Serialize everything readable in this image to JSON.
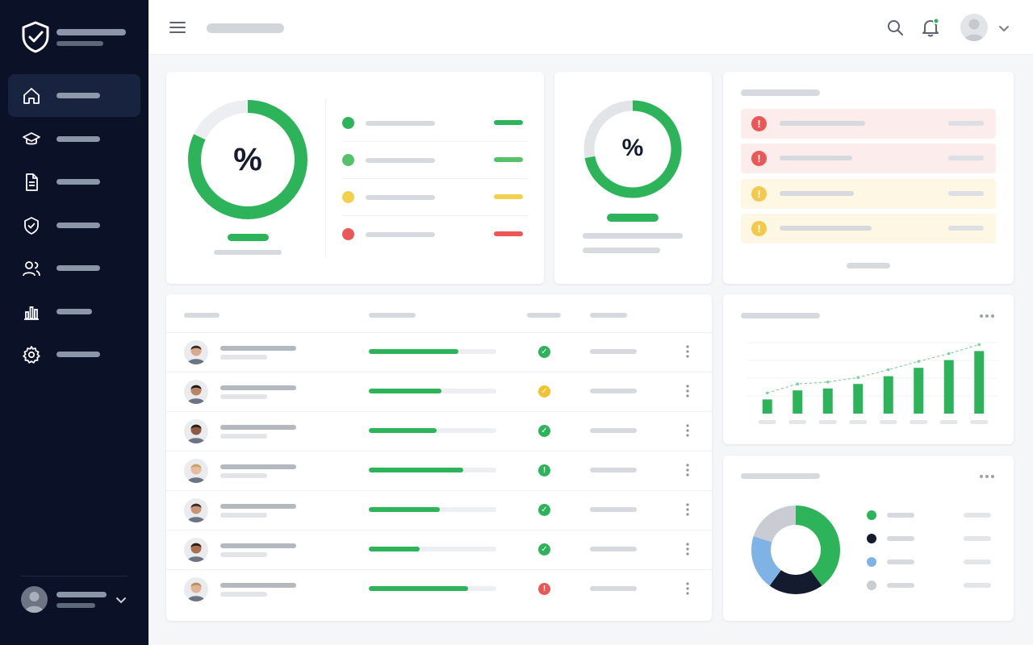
{
  "colors": {
    "sidebar_bg": "#0b1228",
    "sidebar_active": "#18233f",
    "accent_green": "#2db45a",
    "warning_yellow": "#f2c94c",
    "danger_red": "#eb5757",
    "navy": "#151b2e",
    "blue": "#7fb2e5",
    "gray": "#c9ccd2"
  },
  "sidebar": {
    "logo_icon": "shield-check-icon",
    "items": [
      {
        "icon": "home-icon",
        "active": true
      },
      {
        "icon": "graduation-cap-icon",
        "active": false
      },
      {
        "icon": "document-icon",
        "active": false
      },
      {
        "icon": "shield-icon",
        "active": false
      },
      {
        "icon": "users-icon",
        "active": false
      },
      {
        "icon": "bar-chart-icon",
        "active": false
      },
      {
        "icon": "settings-gear-icon",
        "active": false
      }
    ]
  },
  "header": {
    "menu_icon": "hamburger-icon",
    "search_icon": "search-icon",
    "notification_icon": "bell-icon",
    "notification_badge": true
  },
  "kpi_main": {
    "symbol": "%",
    "progress": 0.82,
    "legend": [
      {
        "color": "#2db45a"
      },
      {
        "color": "#55c26a"
      },
      {
        "color": "#f2d24c"
      },
      {
        "color": "#eb5757"
      }
    ]
  },
  "kpi_secondary": {
    "symbol": "%",
    "progress": 0.72
  },
  "alerts": [
    {
      "level": "danger",
      "icon_text": "!"
    },
    {
      "level": "danger",
      "icon_text": "!"
    },
    {
      "level": "warning",
      "icon_text": "!"
    },
    {
      "level": "warning",
      "icon_text": "!"
    }
  ],
  "table": {
    "rows": [
      {
        "progress": 0.7,
        "status": "success",
        "status_icon": "check-circle-icon",
        "status_text": "✓"
      },
      {
        "progress": 0.57,
        "status": "warning",
        "status_icon": "check-circle-icon",
        "status_text": "✓"
      },
      {
        "progress": 0.53,
        "status": "success",
        "status_icon": "check-circle-icon",
        "status_text": "✓"
      },
      {
        "progress": 0.74,
        "status": "alert",
        "status_icon": "exclamation-circle-icon",
        "status_text": "!"
      },
      {
        "progress": 0.56,
        "status": "success",
        "status_icon": "check-circle-icon",
        "status_text": "✓"
      },
      {
        "progress": 0.4,
        "status": "success",
        "status_icon": "check-circle-icon",
        "status_text": "✓"
      },
      {
        "progress": 0.78,
        "status": "danger",
        "status_icon": "exclamation-circle-icon",
        "status_text": "!"
      }
    ]
  },
  "chart_data": [
    {
      "type": "bar",
      "title": "",
      "xlabel": "",
      "ylabel": "",
      "categories": [
        "",
        "",
        "",
        "",
        "",
        "",
        "",
        ""
      ],
      "values": [
        22,
        36,
        39,
        46,
        58,
        71,
        83,
        97
      ],
      "ylim": [
        0,
        110
      ],
      "trend_line": true,
      "grid": true,
      "legend": "none"
    },
    {
      "type": "pie",
      "title": "",
      "donut": true,
      "values": [
        40,
        20,
        20,
        20
      ],
      "colors": [
        "#2db45a",
        "#151b2e",
        "#7fb2e5",
        "#c9ccd2"
      ],
      "legend": "right"
    }
  ]
}
